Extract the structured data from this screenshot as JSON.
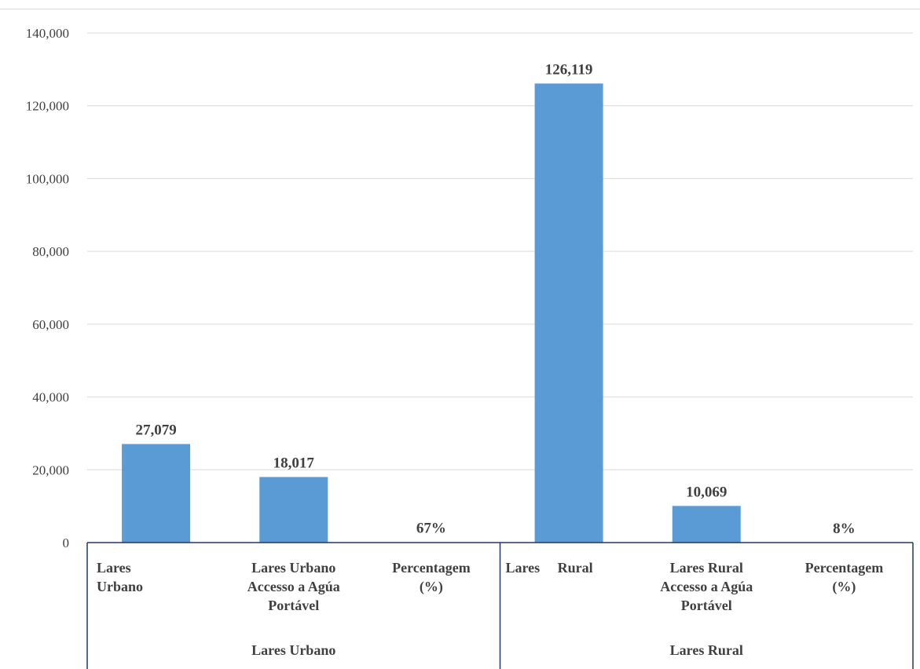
{
  "chart_data": {
    "type": "bar",
    "title": "",
    "xlabel": "",
    "ylabel": "",
    "ylim": [
      0,
      140000
    ],
    "yticks": [
      "0",
      "20,000",
      "40,000",
      "60,000",
      "80,000",
      "100,000",
      "120,000",
      "140,000"
    ],
    "grid": true,
    "legend": "none",
    "colors": {
      "bar": "#5b9bd5",
      "grid": "#d9d9d9",
      "axis": "#1f3864",
      "text": "#404040"
    },
    "groups": [
      {
        "name": "Lares Urbano",
        "items": [
          {
            "label_lines": [
              "Lares",
              "Urbano"
            ],
            "value": 27079,
            "data_label": "27,079"
          },
          {
            "label_lines": [
              "Lares Urbano",
              "Accesso a Agúa",
              "Portável"
            ],
            "value": 18017,
            "data_label": "18,017"
          },
          {
            "label_lines": [
              "Percentagem",
              "(%)"
            ],
            "value": 67,
            "data_label": "67%"
          }
        ]
      },
      {
        "name": "Lares Rural",
        "items": [
          {
            "label_lines": [
              "Lares     Rural"
            ],
            "value": 126119,
            "data_label": "126,119"
          },
          {
            "label_lines": [
              "Lares Rural",
              "Accesso a Agúa",
              "Portável"
            ],
            "value": 10069,
            "data_label": "10,069"
          },
          {
            "label_lines": [
              "Percentagem",
              "(%)"
            ],
            "value": 8,
            "data_label": "8%"
          }
        ]
      }
    ]
  }
}
